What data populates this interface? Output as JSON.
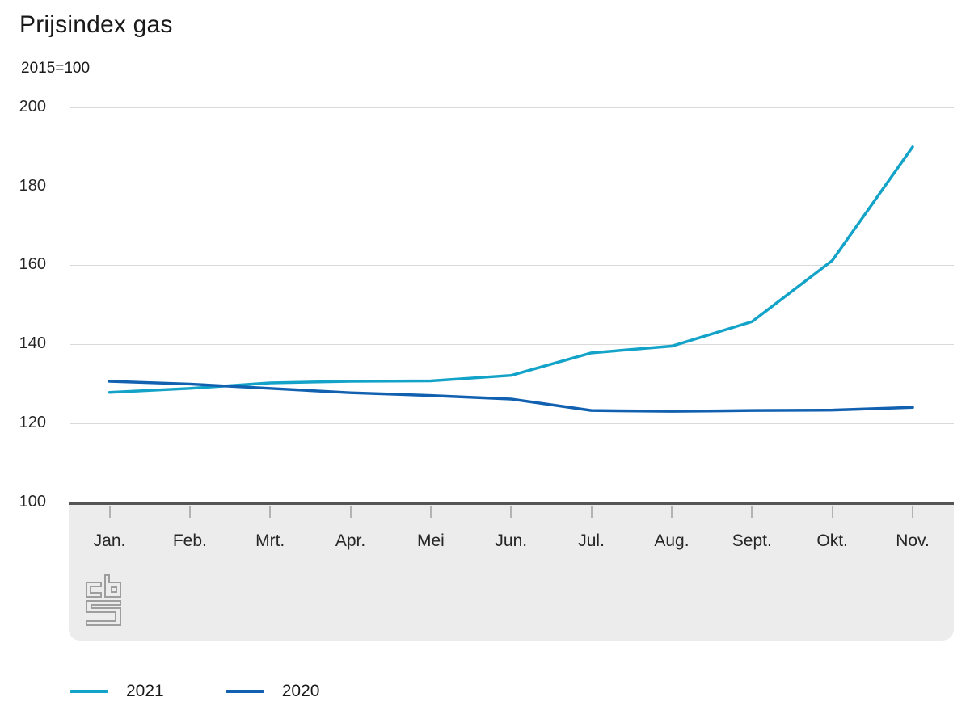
{
  "header": {
    "title": "Prijsindex gas",
    "subtitle": "2015=100"
  },
  "chart_data": {
    "type": "line",
    "title": "Prijsindex gas",
    "unit_label": "2015=100",
    "categories": [
      "Jan.",
      "Feb.",
      "Mrt.",
      "Apr.",
      "Mei",
      "Jun.",
      "Jul.",
      "Aug.",
      "Sept.",
      "Okt.",
      "Nov."
    ],
    "series": [
      {
        "name": "2021",
        "color": "#14a3c8",
        "values": [
          127.8,
          128.8,
          130.2,
          130.6,
          130.7,
          132.1,
          137.8,
          139.5,
          145.7,
          161.2,
          190.0
        ]
      },
      {
        "name": "2020",
        "color": "#1161b0",
        "values": [
          130.6,
          129.9,
          128.8,
          127.7,
          127.0,
          126.1,
          123.2,
          123.0,
          123.2,
          123.3,
          124.0
        ]
      }
    ],
    "y_ticks": [
      200,
      180,
      160,
      140,
      120,
      100
    ],
    "ylim": [
      100,
      200
    ],
    "grid": "horizontal",
    "legend_position": "bottom"
  },
  "branding": {
    "logo": "cbs-logo"
  },
  "colors": {
    "gridline": "#d9d9d9",
    "axis_line": "#555555",
    "axis_band": "#ececec",
    "tick": "#b3b3b3",
    "text": "#262626",
    "logo": "#9e9e9e"
  }
}
